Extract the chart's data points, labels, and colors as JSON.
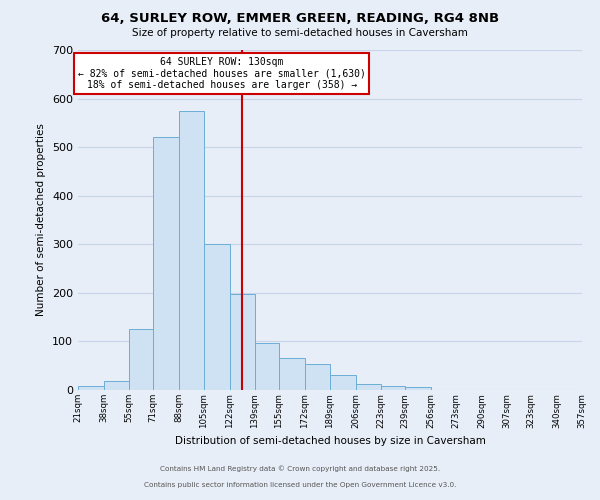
{
  "title": "64, SURLEY ROW, EMMER GREEN, READING, RG4 8NB",
  "subtitle": "Size of property relative to semi-detached houses in Caversham",
  "xlabel": "Distribution of semi-detached houses by size in Caversham",
  "ylabel": "Number of semi-detached properties",
  "bin_edges": [
    21,
    38,
    55,
    71,
    88,
    105,
    122,
    139,
    155,
    172,
    189,
    206,
    223,
    239,
    256,
    273,
    290,
    307,
    323,
    340,
    357
  ],
  "bar_heights": [
    8,
    18,
    125,
    520,
    575,
    300,
    197,
    97,
    65,
    53,
    30,
    12,
    9,
    6,
    0,
    0,
    0,
    0,
    0,
    0
  ],
  "bar_facecolor": "#cfe2f3",
  "bar_edgecolor": "#6aaed6",
  "grid_color": "#c8d4e8",
  "bg_color": "#e8eef8",
  "vline_x": 130,
  "vline_color": "#cc0000",
  "annotation_title": "64 SURLEY ROW: 130sqm",
  "annotation_line1": "← 82% of semi-detached houses are smaller (1,630)",
  "annotation_line2": "18% of semi-detached houses are larger (358) →",
  "annotation_box_edgecolor": "#cc0000",
  "annotation_box_facecolor": "#ffffff",
  "ylim": [
    0,
    700
  ],
  "yticks": [
    0,
    100,
    200,
    300,
    400,
    500,
    600,
    700
  ],
  "footer_line1": "Contains HM Land Registry data © Crown copyright and database right 2025.",
  "footer_line2": "Contains public sector information licensed under the Open Government Licence v3.0."
}
